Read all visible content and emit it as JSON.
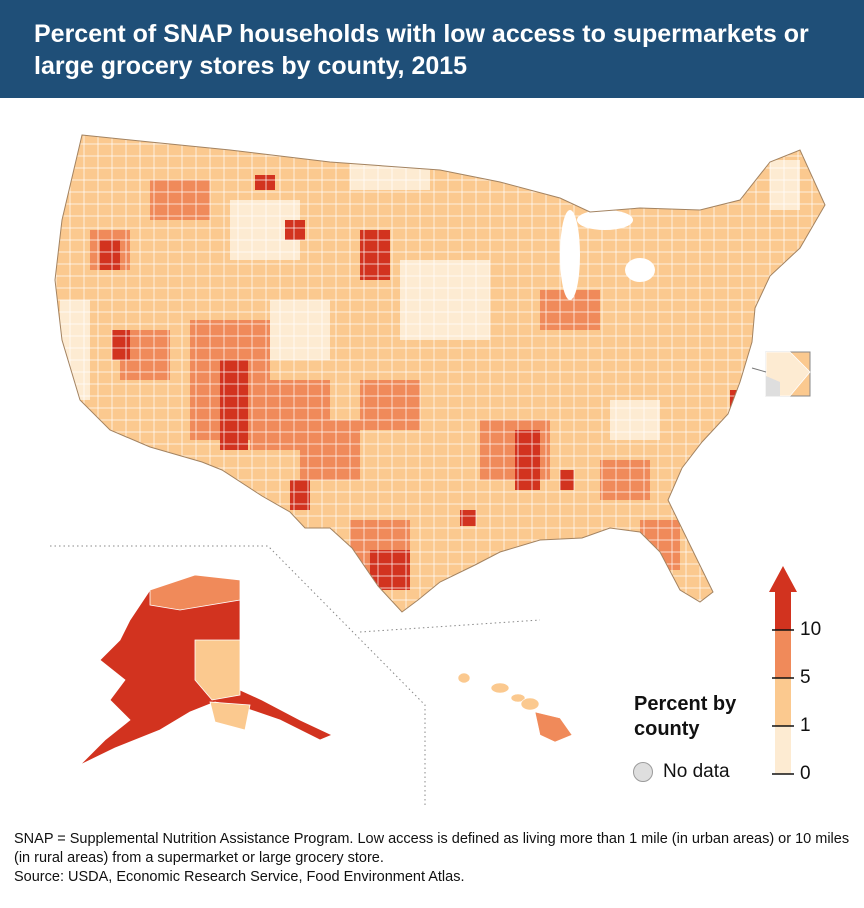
{
  "title": "Percent of SNAP households with low access to supermarkets or large grocery stores by county, 2015",
  "legend": {
    "title": "Percent by county",
    "ticks": [
      "10",
      "5",
      "1",
      "0"
    ],
    "no_data_label": "No data",
    "colors": {
      "0-1": "#fdebd2",
      "1-5": "#fbc98f",
      "5-10": "#f08a5a",
      "10+": "#d2331f",
      "no_data": "#dedede",
      "water": "#cfe3f1"
    }
  },
  "footnote": {
    "line1": "SNAP = Supplemental Nutrition Assistance Program. Low access is defined as living more than 1 mile (in urban areas) or 10 miles (in rural areas) from a supermarket or large grocery store.",
    "line2": "Source: USDA, Economic Research Service, Food Environment Atlas."
  },
  "icons": [
    "dc-inset-map",
    "alaska-inset-map",
    "hawaii-inset-map",
    "up-arrow-icon"
  ]
}
